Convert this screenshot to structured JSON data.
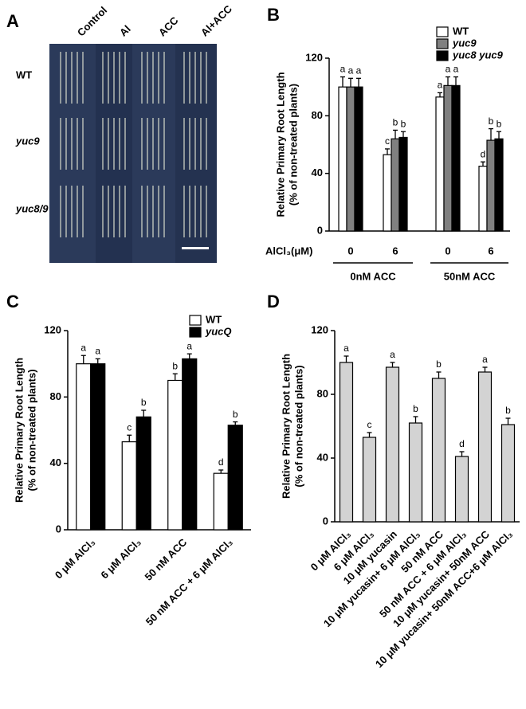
{
  "photo_panel": {
    "panel": "A",
    "columns": [
      "Control",
      "Al",
      "ACC",
      "Al+ACC"
    ],
    "rows": [
      "WT",
      "yuc9",
      "yuc8/9"
    ]
  },
  "chart_data": [
    {
      "type": "bar",
      "panel": "B",
      "ylabel": [
        "Relative Primary Root Length",
        "(% of non-treated plants)"
      ],
      "categories": [
        "0",
        "6",
        "0",
        "6"
      ],
      "xlabel": "AlCl₃(μM)",
      "group_labels": [
        "0nM ACC",
        "50nM ACC"
      ],
      "ylim": [
        0,
        120
      ],
      "yticks": [
        0,
        40,
        80,
        120
      ],
      "legend": "top-right",
      "series": [
        {
          "name": "WT",
          "color": "#ffffff",
          "values": [
            100,
            53,
            93,
            45
          ],
          "errors": [
            7,
            4,
            3,
            3
          ],
          "letters": [
            "a",
            "c",
            "a",
            "d"
          ]
        },
        {
          "name": "yuc9",
          "color": "#808080",
          "values": [
            100,
            64,
            101,
            63
          ],
          "errors": [
            6,
            6,
            6,
            8
          ],
          "letters": [
            "a",
            "b",
            "a",
            "b"
          ]
        },
        {
          "name": "yuc8 yuc9",
          "color": "#000000",
          "values": [
            100,
            65,
            101,
            64
          ],
          "errors": [
            6,
            4,
            6,
            5
          ],
          "letters": [
            "a",
            "b",
            "a",
            "b"
          ]
        }
      ]
    },
    {
      "type": "bar",
      "panel": "C",
      "ylabel": [
        "Relative Primary Root Length",
        "(% of non-treated plants)"
      ],
      "categories": [
        "0 μM AlCl₃",
        "6 μM AlCl₃",
        "50 nM ACC",
        "50 nM ACC + 6 μM AlCl₃"
      ],
      "ylim": [
        0,
        120
      ],
      "yticks": [
        0,
        40,
        80,
        120
      ],
      "legend": "top-right",
      "series": [
        {
          "name": "WT",
          "color": "#ffffff",
          "values": [
            100,
            53,
            90,
            34
          ],
          "errors": [
            5,
            4,
            4,
            2
          ],
          "letters": [
            "a",
            "c",
            "b",
            "d"
          ]
        },
        {
          "name": "yucQ",
          "color": "#000000",
          "values": [
            100,
            68,
            103,
            63
          ],
          "errors": [
            3,
            4,
            3,
            2
          ],
          "letters": [
            "a",
            "b",
            "a",
            "b"
          ]
        }
      ]
    },
    {
      "type": "bar",
      "panel": "D",
      "ylabel": [
        "Relative Primary Root Length",
        "(% of non-treated plants)"
      ],
      "categories": [
        "0 μM AlCl₃",
        "6 μM AlCl₃",
        "10 μM yucasin",
        "10 μM yucasin+ 6 μM AlCl₃",
        "50 nM ACC",
        "50 nM ACC + 6 μM AlCl₃",
        "10 μM yucasin+ 50nM ACC",
        "10 μM yucasin+ 50nM ACC+6 μM AlCl₃"
      ],
      "ylim": [
        0,
        120
      ],
      "yticks": [
        0,
        40,
        80,
        120
      ],
      "series": [
        {
          "color": "#d3d3d3",
          "values": [
            100,
            53,
            97,
            62,
            90,
            41,
            94,
            61
          ],
          "errors": [
            4,
            3,
            3,
            4,
            4,
            3,
            3,
            4
          ],
          "letters": [
            "a",
            "c",
            "a",
            "b",
            "b",
            "d",
            "a",
            "b"
          ]
        }
      ]
    }
  ]
}
